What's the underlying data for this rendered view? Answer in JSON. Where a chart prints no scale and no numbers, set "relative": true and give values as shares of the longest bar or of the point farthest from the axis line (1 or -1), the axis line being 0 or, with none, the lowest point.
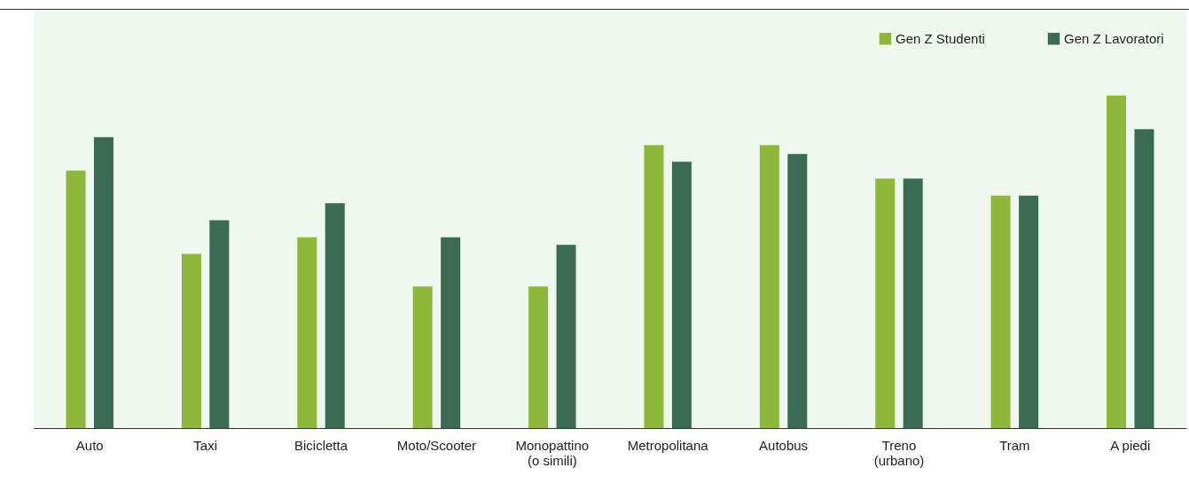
{
  "chart_data": {
    "type": "bar",
    "relative": true,
    "legend": "top right",
    "categories": [
      "Auto",
      "Taxi",
      "Bicicletta",
      "Moto/Scooter",
      "Monopattino\n(o simili)",
      "Metropolitana",
      "Autobus",
      "Treno\n(urbano)",
      "Tram",
      "A piedi"
    ],
    "series": [
      {
        "name": "Gen Z Studenti",
        "color": "#8db83a",
        "values": [
          0.774,
          0.524,
          0.574,
          0.426,
          0.426,
          0.851,
          0.851,
          0.75,
          0.699,
          1
        ]
      },
      {
        "name": "Gen Z Lavoratori",
        "color": "#3b6b55",
        "values": [
          0.875,
          0.625,
          0.676,
          0.574,
          0.551,
          0.801,
          0.824,
          0.75,
          0.699,
          0.899
        ]
      }
    ]
  }
}
